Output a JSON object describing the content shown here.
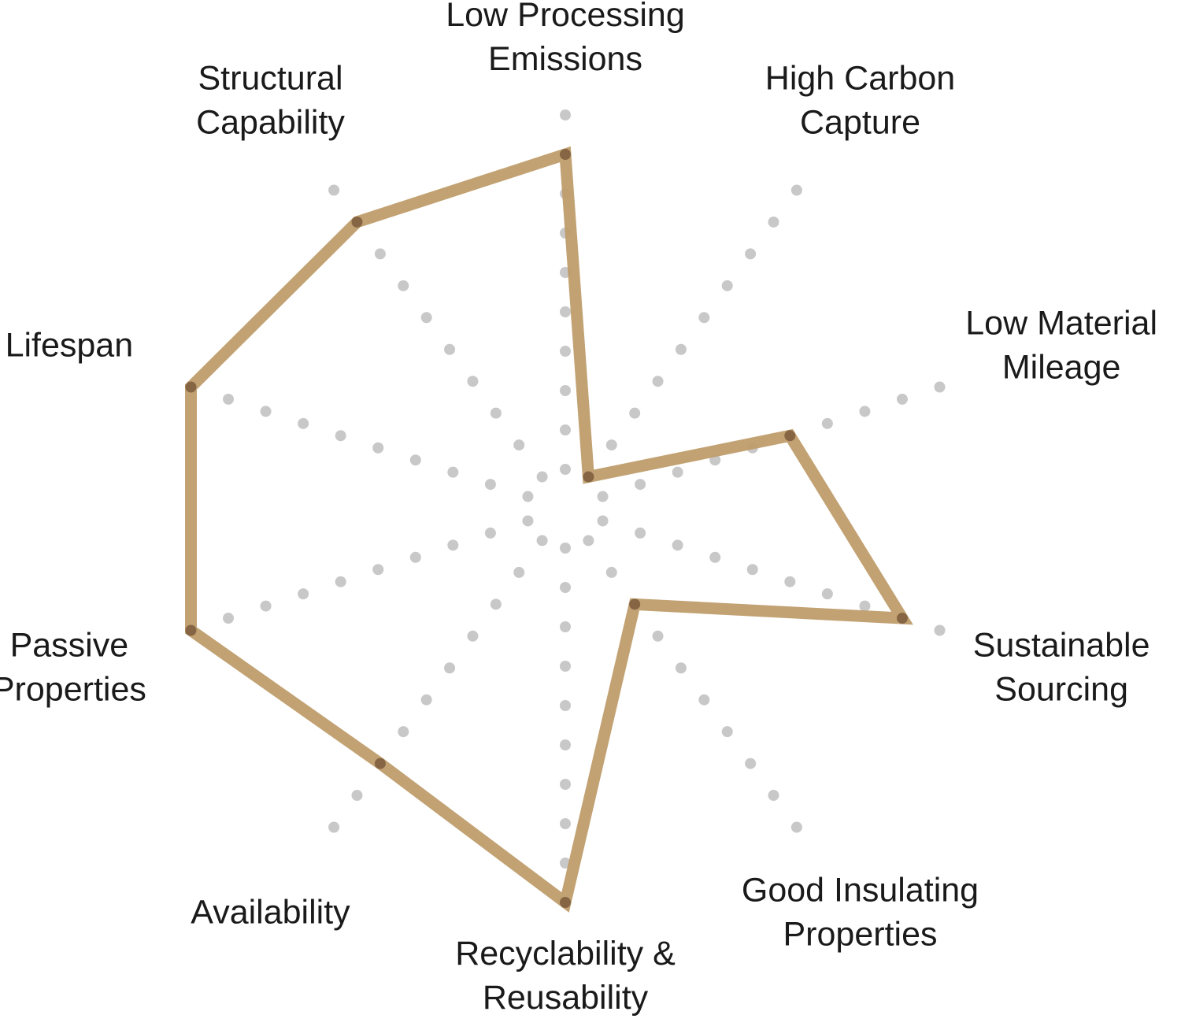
{
  "chart_data": {
    "type": "radar",
    "categories": [
      [
        "Low Processing",
        "Emissions"
      ],
      [
        "High Carbon",
        "Capture"
      ],
      [
        "Low Material",
        "Mileage"
      ],
      [
        "Sustainable",
        "Sourcing"
      ],
      [
        "Good Insulating",
        "Properties"
      ],
      [
        "Recyclability &",
        "Reusability"
      ],
      [
        "Availability"
      ],
      [
        "Passive",
        "Properties"
      ],
      [
        "Lifespan"
      ],
      [
        "Structural",
        "Capability"
      ]
    ],
    "values": [
      9,
      1,
      6,
      9,
      3,
      10,
      8,
      10,
      10,
      9
    ],
    "color": "#bf9d6c",
    "rlim": [
      0,
      10
    ],
    "rticks": [
      1,
      2,
      3,
      4,
      5,
      6,
      7,
      8,
      9,
      10
    ]
  }
}
